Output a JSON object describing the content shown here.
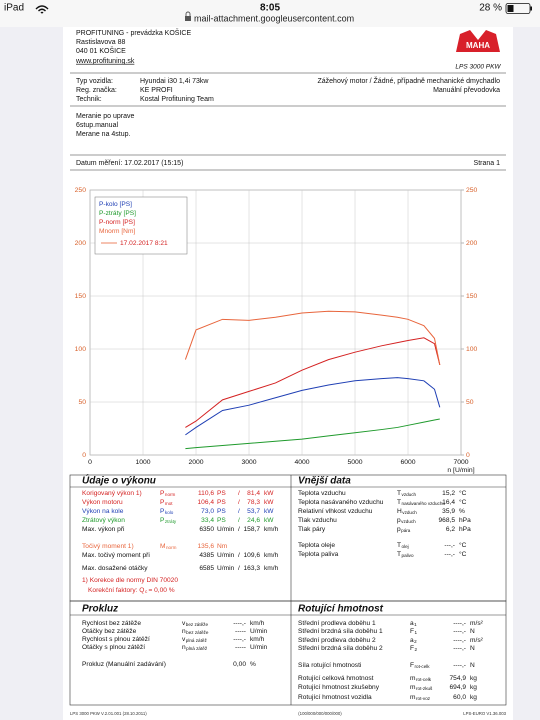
{
  "status_bar": {
    "device": "iPad",
    "time": "8:05",
    "url": "mail-attachment.googleusercontent.com",
    "battery": "28 %"
  },
  "header": {
    "company": "PROFITUNING - prevádzka KOŠICE",
    "street": "Rastislavova 88",
    "city": "040 01 KOŠICE",
    "web": "www.profituning.sk",
    "logo": "MAHA",
    "model": "LPS 3000 PKW"
  },
  "vehicle": {
    "rows": [
      {
        "label": "Typ vozidla:",
        "value": "Hyundai i30 1,4i 73kw"
      },
      {
        "label": "Reg. značka:",
        "value": "KE PROFI"
      },
      {
        "label": "Technik:",
        "value": "Kostal Profituning Team"
      }
    ],
    "engine": "Zážehový motor / Žádné, případně mechanické dmychadlo",
    "gearbox": "Manuální převodovka"
  },
  "notes": [
    "Meranie po uprave",
    "6stup.manual",
    "Merane na 4stup."
  ],
  "date": "Datum měření: 17.02.2017 (15:15)",
  "page": "Strana 1",
  "chart_data": {
    "type": "line",
    "x": [
      1800,
      2000,
      2500,
      3000,
      3500,
      4000,
      4500,
      5000,
      5500,
      5800,
      6000,
      6300,
      6500,
      6600
    ],
    "xlim": [
      0,
      7000
    ],
    "xticks": [
      0,
      1000,
      2000,
      3000,
      4000,
      5000,
      6000,
      7000
    ],
    "x_label": "n [U/min]",
    "ylim": [
      0,
      250
    ],
    "yticks": [
      0,
      50,
      100,
      150,
      200,
      250
    ],
    "y2lim": [
      0,
      250
    ],
    "y2ticks": [
      0,
      50,
      100,
      150,
      200,
      250
    ],
    "grid": true,
    "legend": "upper left",
    "legend_run": "17.02.2017 8:21",
    "series": [
      {
        "name": "P-kolo [PS]",
        "color": "#1f3fb4",
        "values": [
          19,
          26,
          42,
          47,
          54,
          61,
          66,
          70,
          72,
          73,
          72,
          70,
          62,
          45
        ]
      },
      {
        "name": "P-ztráty [PS]",
        "color": "#1f9a2c",
        "values": [
          6,
          7,
          9,
          11,
          13,
          15,
          18,
          21,
          24,
          26,
          28,
          31,
          33,
          34
        ]
      },
      {
        "name": "P-norm [PS]",
        "color": "#d42222",
        "values": [
          26,
          32,
          52,
          60,
          68,
          80,
          90,
          97,
          103,
          106,
          108,
          110.6,
          105,
          85
        ]
      },
      {
        "name": "Mnorm [Nm]",
        "color": "#e8653c",
        "axis": "y2",
        "values": [
          90,
          118,
          128,
          127,
          130,
          134,
          135.6,
          135,
          132,
          130,
          128,
          122,
          110,
          85
        ]
      }
    ]
  },
  "performance": {
    "title": "Údaje o výkonu",
    "rows": [
      {
        "label": "Korigovaný výkon 1)",
        "sym": "P",
        "sub": "norm",
        "v1": "110,6",
        "u1": "PS",
        "sep": "/",
        "v2": "81,4",
        "u2": "kW",
        "color": "#d42222"
      },
      {
        "label": "Výkon motoru",
        "sym": "P",
        "sub": "mot",
        "v1": "106,4",
        "u1": "PS",
        "sep": "/",
        "v2": "78,3",
        "u2": "kW",
        "color": "#d42222"
      },
      {
        "label": "Výkon na kole",
        "sym": "P",
        "sub": "kolo",
        "v1": "73,0",
        "u1": "PS",
        "sep": "/",
        "v2": "53,7",
        "u2": "kW",
        "color": "#1f3fb4"
      },
      {
        "label": "Ztrátový výkon",
        "sym": "P",
        "sub": "ztráty",
        "v1": "33,4",
        "u1": "PS",
        "sep": "/",
        "v2": "24,6",
        "u2": "kW",
        "color": "#1f9a2c"
      },
      {
        "label": "Max. výkon při",
        "v1": "6350",
        "u1": "U/min",
        "sep": "/",
        "v2": "158,7",
        "u2": "km/h",
        "color": "#111111"
      },
      {
        "label": "Točivý moment 1)",
        "sym": "M",
        "sub": "norm",
        "v1": "135,6",
        "u1": "Nm",
        "color": "#e8653c"
      },
      {
        "label": "Max. točivý moment při",
        "v1": "4385",
        "u1": "U/min",
        "sep": "/",
        "v2": "109,6",
        "u2": "km/h",
        "color": "#111111"
      },
      {
        "label": "Max. dosažené otáčky",
        "v1": "6585",
        "u1": "U/min",
        "sep": "/",
        "v2": "163,3",
        "u2": "km/h",
        "color": "#111111"
      }
    ],
    "footnote": "1) Korekce dle normy DIN 70020",
    "correction": {
      "label": "Korekční faktory: Q",
      "sub": "c",
      "value": "= 0,00 %"
    }
  },
  "ambient": {
    "title": "Vnější data",
    "rows": [
      {
        "label": "Teplota vzduchu",
        "sym": "T",
        "sub": "vzduch",
        "v1": "15,2",
        "u1": "°C"
      },
      {
        "label": "Teplota nasávaného vzduchu",
        "sym": "T",
        "sub": "nasávaného vzduchu",
        "v1": "16,4",
        "u1": "°C"
      },
      {
        "label": "Relativní vlhkost vzduchu",
        "sym": "H",
        "sub": "vzduch",
        "v1": "35,9",
        "u1": "%"
      },
      {
        "label": "Tlak vzduchu",
        "sym": "p",
        "sub": "vzduch",
        "v1": "968,5",
        "u1": "hPa"
      },
      {
        "label": "Tlak páry",
        "sym": "p",
        "sub": "pára",
        "v1": "6,2",
        "u1": "hPa"
      },
      {
        "label": "Teplota oleje",
        "sym": "T",
        "sub": "olej",
        "v1": "---,-",
        "u1": "°C"
      },
      {
        "label": "Teplota paliva",
        "sym": "T",
        "sub": "palivo",
        "v1": "---,-",
        "u1": "°C"
      }
    ]
  },
  "slip": {
    "title": "Prokluz",
    "rows": [
      {
        "label": "Rychlost bez zátěže",
        "sym": "v",
        "sub": "bez zátěže",
        "v1": "----,-",
        "u1": "km/h"
      },
      {
        "label": "Otáčky bez zátěže",
        "sym": "n",
        "sub": "bez zátěže",
        "v1": "-----",
        "u1": "U/min"
      },
      {
        "label": "Rychlost s plnou zátěží",
        "sym": "v",
        "sub": "plná zátěž",
        "v1": "----,-",
        "u1": "km/h"
      },
      {
        "label": "Otáčky s plnou zátěží",
        "sym": "n",
        "sub": "plná zátěž",
        "v1": "-----",
        "u1": "U/min"
      },
      {
        "label": "Prokluz (Manuální zadávání)",
        "v1": "0,00",
        "u1": "%"
      }
    ]
  },
  "rotating": {
    "title": "Rotující hmotnost",
    "rows": [
      {
        "label": "Střední prodleva doběhu 1",
        "sym": "a",
        "sub": "1",
        "v1": "----,-",
        "u1": "m/s²"
      },
      {
        "label": "Střední brzdná síla doběhu 1",
        "sym": "F",
        "sub": "1",
        "v1": "----,-",
        "u1": "N"
      },
      {
        "label": "Střední prodleva doběhu 2",
        "sym": "a",
        "sub": "2",
        "v1": "----,-",
        "u1": "m/s²"
      },
      {
        "label": "Střední brzdná síla doběhu 2",
        "sym": "F",
        "sub": "2",
        "v1": "----,-",
        "u1": "N"
      },
      {
        "label": "Síla rotující hmotnosti",
        "sym": "F",
        "sub": "rot-celk",
        "v1": "----,-",
        "u1": "N"
      },
      {
        "label": "Rotující celková hmotnost",
        "sym": "m",
        "sub": "rot-celk",
        "v1": "754,9",
        "u1": "kg"
      },
      {
        "label": "Rotující hmotnost zkušebny",
        "sym": "m",
        "sub": "rot-zkuš",
        "v1": "694,9",
        "u1": "kg"
      },
      {
        "label": "Rotující hmotnost vozidla",
        "sym": "m",
        "sub": "rot-voz",
        "v1": "60,0",
        "u1": "kg"
      }
    ]
  },
  "footer": {
    "left": "LPS 3000 PKW V.2.01.001 (28.10.2011)",
    "center": "(100/000/000/000/000)",
    "right": "LPS-EURO V1.36.003"
  }
}
